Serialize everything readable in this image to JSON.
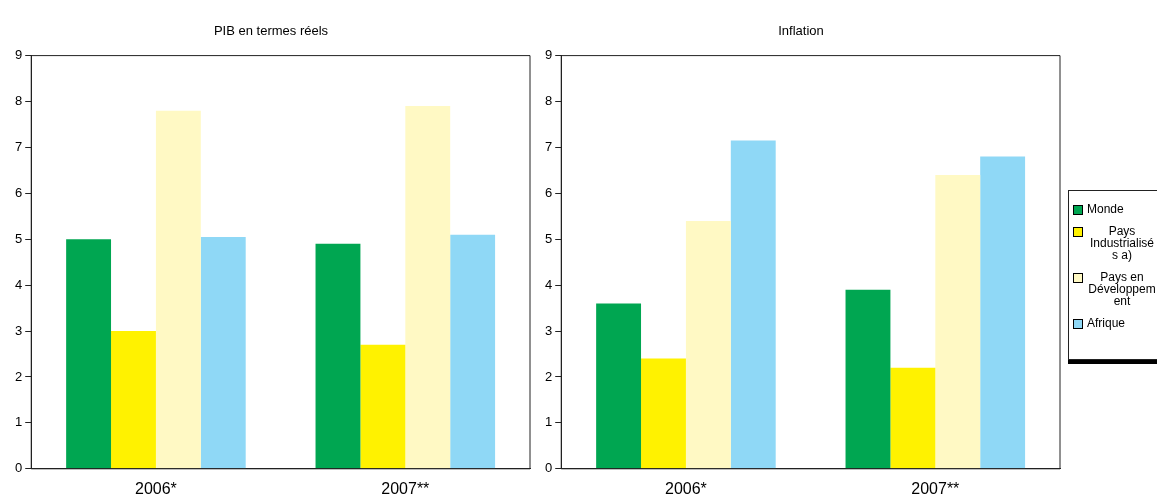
{
  "chart_data": [
    {
      "type": "bar",
      "title": "PIB en termes réels",
      "categories": [
        "2006*",
        "2007**"
      ],
      "series": [
        {
          "color": "#00a651",
          "values": [
            5.0,
            4.9
          ]
        },
        {
          "color": "#fff200",
          "values": [
            3.0,
            2.7
          ]
        },
        {
          "color": "#fff9c4",
          "values": [
            7.8,
            7.9
          ]
        },
        {
          "color": "#8fd8f6",
          "values": [
            5.05,
            5.1
          ]
        }
      ],
      "ylim": [
        0,
        9
      ],
      "yticks": [
        0,
        1,
        2,
        3,
        4,
        5,
        6,
        7,
        8,
        9
      ],
      "grid": false,
      "legend": false
    },
    {
      "type": "bar",
      "title": "Inflation",
      "categories": [
        "2006*",
        "2007**"
      ],
      "series": [
        {
          "name": "Monde",
          "color": "#00a651",
          "values": [
            3.6,
            3.9
          ]
        },
        {
          "name": "Pays Industrialisés a)",
          "color": "#fff200",
          "values": [
            2.4,
            2.2
          ]
        },
        {
          "name": "Pays en Développement",
          "color": "#fff9c4",
          "values": [
            5.4,
            6.4
          ]
        },
        {
          "name": "Afrique",
          "color": "#8fd8f6",
          "values": [
            7.15,
            6.8
          ]
        }
      ],
      "ylim": [
        0,
        9
      ],
      "yticks": [
        0,
        1,
        2,
        3,
        4,
        5,
        6,
        7,
        8,
        9
      ],
      "grid": false,
      "legend": "right"
    }
  ]
}
